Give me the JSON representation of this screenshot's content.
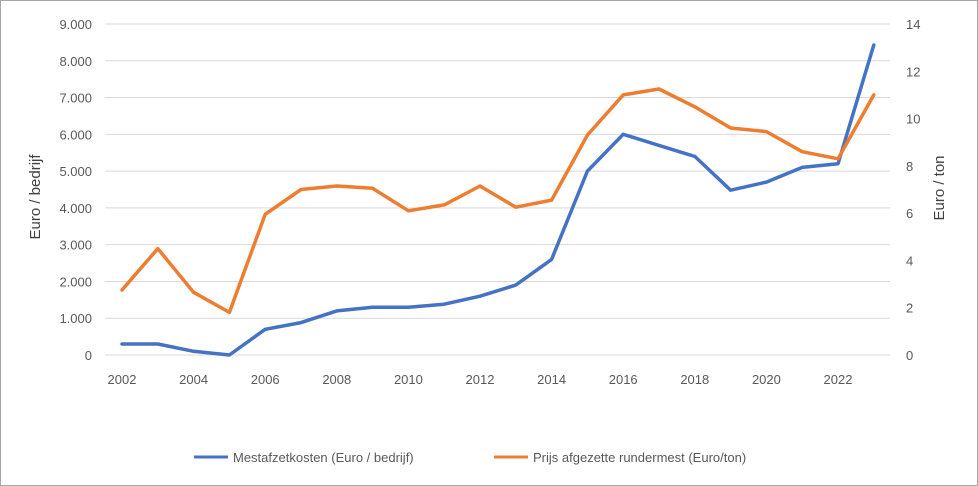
{
  "chart_data": {
    "type": "line",
    "title": "",
    "x": [
      2002,
      2003,
      2004,
      2005,
      2006,
      2007,
      2008,
      2009,
      2010,
      2011,
      2012,
      2013,
      2014,
      2015,
      2016,
      2017,
      2018,
      2019,
      2020,
      2021,
      2022,
      2023
    ],
    "x_ticks": [
      "2002",
      "2004",
      "2006",
      "2008",
      "2010",
      "2012",
      "2014",
      "2016",
      "2018",
      "2020",
      "2022"
    ],
    "y_left": {
      "label": "Euro / bedrijf",
      "range": [
        0,
        9000
      ],
      "ticks": [
        "0",
        "1.000",
        "2.000",
        "3.000",
        "4.000",
        "5.000",
        "6.000",
        "7.000",
        "8.000",
        "9.000"
      ]
    },
    "y_right": {
      "label": "Euro / ton",
      "range": [
        0,
        14
      ],
      "ticks": [
        "0",
        "2",
        "4",
        "6",
        "8",
        "10",
        "12",
        "14"
      ]
    },
    "grid": true,
    "legend_position": "bottom",
    "series": [
      {
        "name": "Mestafzetkosten (Euro / bedrijf)",
        "axis": "left",
        "color": "#4472c4",
        "values": [
          300,
          300,
          100,
          0,
          700,
          880,
          1200,
          1300,
          1300,
          1380,
          1600,
          1900,
          2600,
          5000,
          6000,
          5700,
          5400,
          4480,
          4700,
          5100,
          5200,
          8430
        ]
      },
      {
        "name": "Prijs afgezette rundermest (Euro/ton)",
        "axis": "right",
        "color": "#ed7d31",
        "values": [
          2.75,
          4.5,
          2.65,
          1.8,
          5.95,
          7.0,
          7.15,
          7.05,
          6.1,
          6.35,
          7.15,
          6.25,
          6.55,
          9.3,
          11.0,
          11.25,
          10.5,
          9.6,
          9.45,
          8.6,
          8.3,
          11.0
        ]
      }
    ]
  }
}
